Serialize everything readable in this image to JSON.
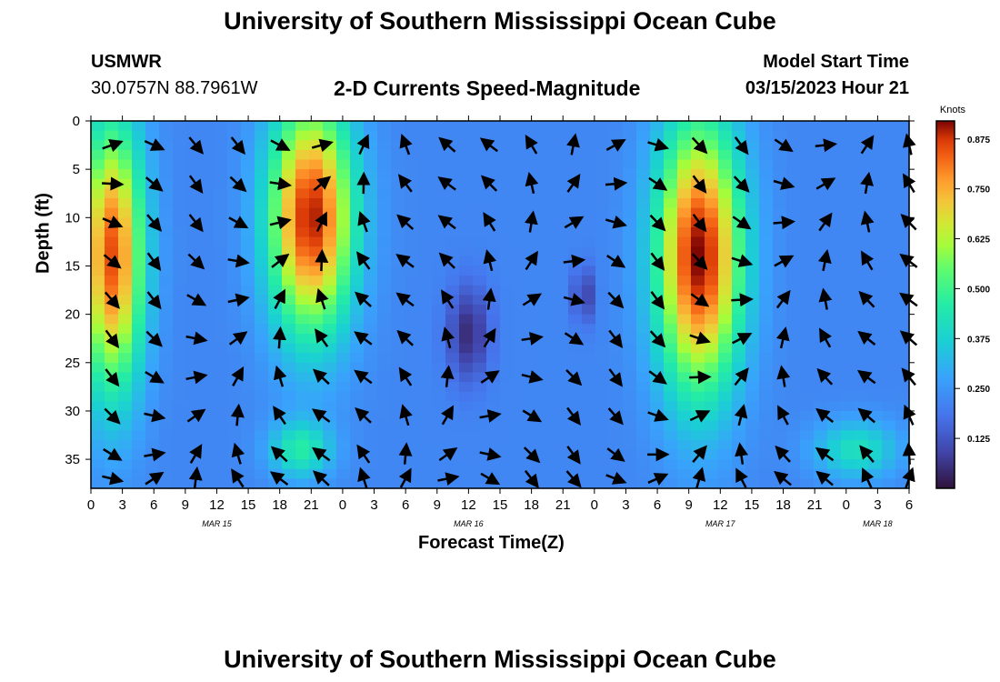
{
  "header": {
    "title": "University of Southern Mississippi Ocean Cube",
    "station_id": "USMWR",
    "coords": "30.0757N  88.7961W",
    "subtitle": "2-D Currents Speed-Magnitude",
    "model_start_label": "Model Start Time",
    "model_start_value": "03/15/2023 Hour 21"
  },
  "footer": {
    "title": "University of Southern Mississippi Ocean Cube"
  },
  "chart_data": {
    "type": "heatmap",
    "title": "2-D Currents Speed-Magnitude",
    "xlabel": "Forecast Time(Z)",
    "ylabel": "Depth (ft)",
    "x_hours": [
      0,
      78
    ],
    "x_tick_labels": [
      "0",
      "3",
      "6",
      "9",
      "12",
      "15",
      "18",
      "21",
      "0",
      "3",
      "6",
      "9",
      "12",
      "15",
      "18",
      "21",
      "0",
      "3",
      "6",
      "9",
      "12",
      "15",
      "18",
      "21",
      "0",
      "3",
      "6"
    ],
    "date_labels": [
      {
        "label": "MAR 15",
        "hour": 12
      },
      {
        "label": "MAR 16",
        "hour": 36
      },
      {
        "label": "MAR 17",
        "hour": 60
      },
      {
        "label": "MAR 18",
        "hour": 75
      }
    ],
    "y_ticks": [
      0,
      5,
      10,
      15,
      20,
      25,
      30,
      35
    ],
    "ylim": [
      0,
      38
    ],
    "y_inverted": true,
    "colorbar": {
      "title": "Knots",
      "ticks": [
        "0.875",
        "0.750",
        "0.625",
        "0.500",
        "0.375",
        "0.250",
        "0.125"
      ],
      "tick_values": [
        0.875,
        0.75,
        0.625,
        0.5,
        0.375,
        0.25,
        0.125
      ],
      "range": [
        0,
        0.92
      ]
    },
    "speed_field": {
      "description": "current speed (knots), hours 0-78 from Mar 15 00Z, depth 0-38 ft",
      "cores": [
        {
          "hour": 2,
          "depth": 14,
          "speed": 0.85,
          "hour_width": 3,
          "depth_width": 14
        },
        {
          "hour": 21,
          "depth": 10,
          "speed": 0.9,
          "hour_width": 4,
          "depth_width": 12
        },
        {
          "hour": 58,
          "depth": 14,
          "speed": 0.92,
          "hour_width": 4,
          "depth_width": 14
        },
        {
          "hour": 36,
          "depth": 22,
          "speed": 0.05,
          "hour_width": 2,
          "depth_width": 5
        },
        {
          "hour": 47,
          "depth": 18,
          "speed": 0.08,
          "hour_width": 1,
          "depth_width": 3
        },
        {
          "hour": 20,
          "depth": 34,
          "speed": 0.45,
          "hour_width": 3,
          "depth_width": 3
        },
        {
          "hour": 73,
          "depth": 34,
          "speed": 0.42,
          "hour_width": 4,
          "depth_width": 3
        }
      ]
    },
    "arrow_rows_depth": [
      2.5,
      6.5,
      10.5,
      14.5,
      18.5,
      22.5,
      26.5,
      30.5,
      34.5,
      37.0
    ],
    "arrow_columns_hour": [
      2,
      6,
      10,
      14,
      18,
      22,
      26,
      30,
      34,
      38,
      42,
      46,
      50,
      54,
      58,
      62,
      66,
      70,
      74,
      78
    ]
  }
}
